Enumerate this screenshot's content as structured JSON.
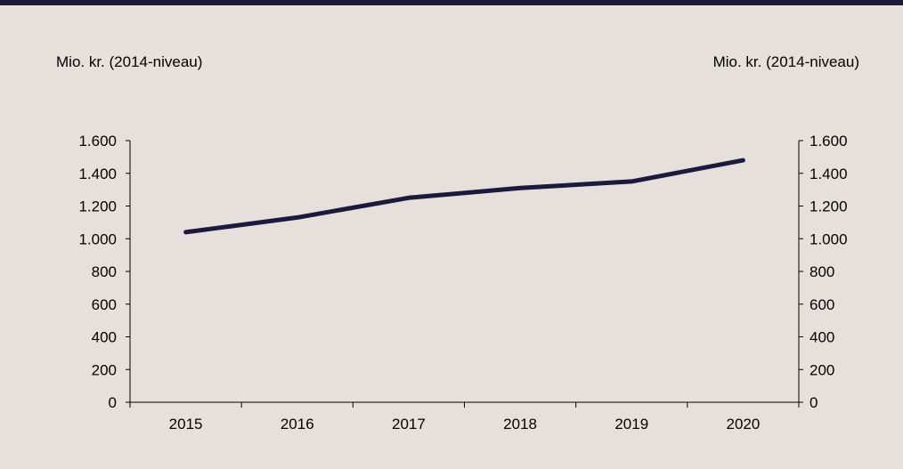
{
  "chart_data": {
    "type": "line",
    "categories": [
      "2015",
      "2016",
      "2017",
      "2018",
      "2019",
      "2020"
    ],
    "series": [
      {
        "values": [
          1040,
          1130,
          1250,
          1310,
          1350,
          1480
        ],
        "color": "#1b1a3d"
      }
    ],
    "ylabel_left": "Mio. kr. (2014-niveau)",
    "ylabel_right": "Mio. kr. (2014-niveau)",
    "ylim": [
      0,
      1600
    ],
    "yticks": [
      0,
      200,
      400,
      600,
      800,
      1000,
      1200,
      1400,
      1600
    ],
    "ytick_labels": [
      "0",
      "200",
      "400",
      "600",
      "800",
      "1.000",
      "1.200",
      "1.400",
      "1.600"
    ],
    "grid": false,
    "legend": "none"
  },
  "colors": {
    "background": "#e6e0dd",
    "top_rule": "#1b1a3d",
    "axis": "#000000"
  }
}
